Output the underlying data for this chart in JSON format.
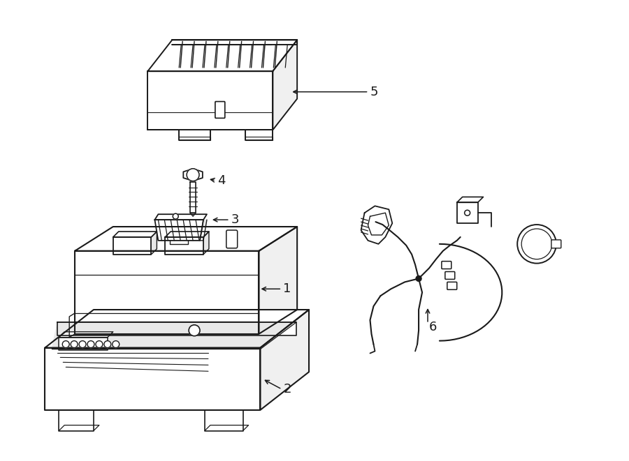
{
  "bg_color": "#ffffff",
  "line_color": "#1a1a1a",
  "lw": 1.4,
  "fig_width": 9.0,
  "fig_height": 6.61,
  "dpi": 100
}
